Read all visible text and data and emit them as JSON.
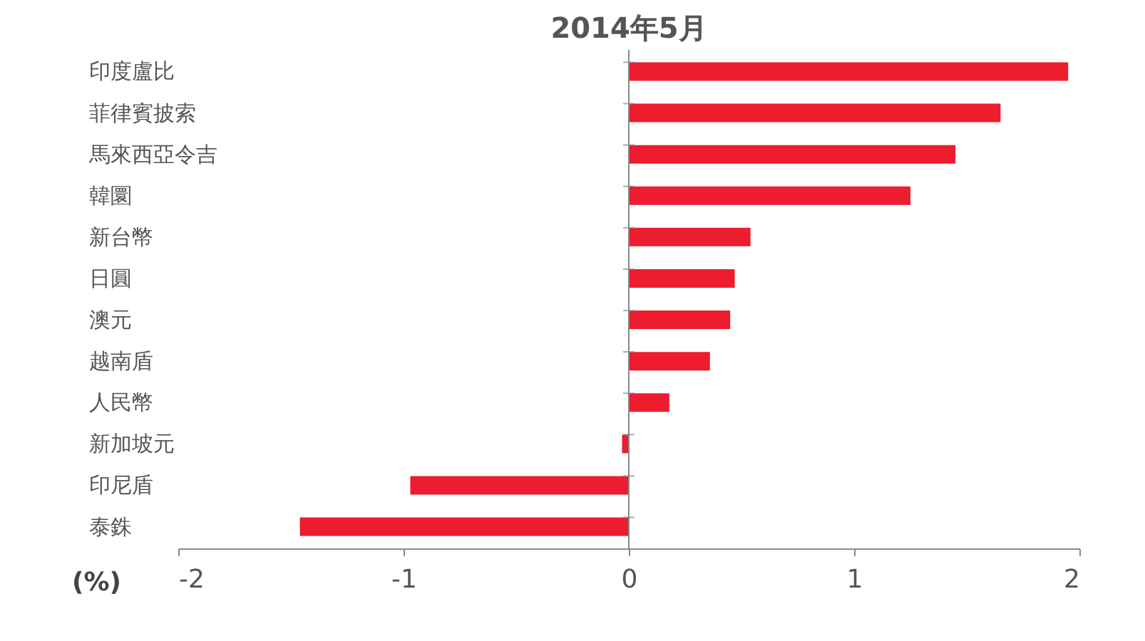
{
  "chart_data": {
    "type": "bar",
    "orientation": "horizontal",
    "title": "2014年5月",
    "xlabel": "(%)",
    "categories": [
      "印度盧比",
      "菲律賓披索",
      "馬來西亞令吉",
      "韓圜",
      "新台幣",
      "日圓",
      "澳元",
      "越南盾",
      "人民幣",
      "新加坡元",
      "印尼盾",
      "泰銖"
    ],
    "values": [
      1.95,
      1.65,
      1.45,
      1.25,
      0.54,
      0.47,
      0.45,
      0.36,
      0.18,
      -0.03,
      -0.97,
      -1.46
    ],
    "color": "#ed1c2e",
    "xlim": [
      -2,
      2
    ],
    "xticks": [
      -2,
      -1,
      0,
      1,
      2
    ]
  }
}
